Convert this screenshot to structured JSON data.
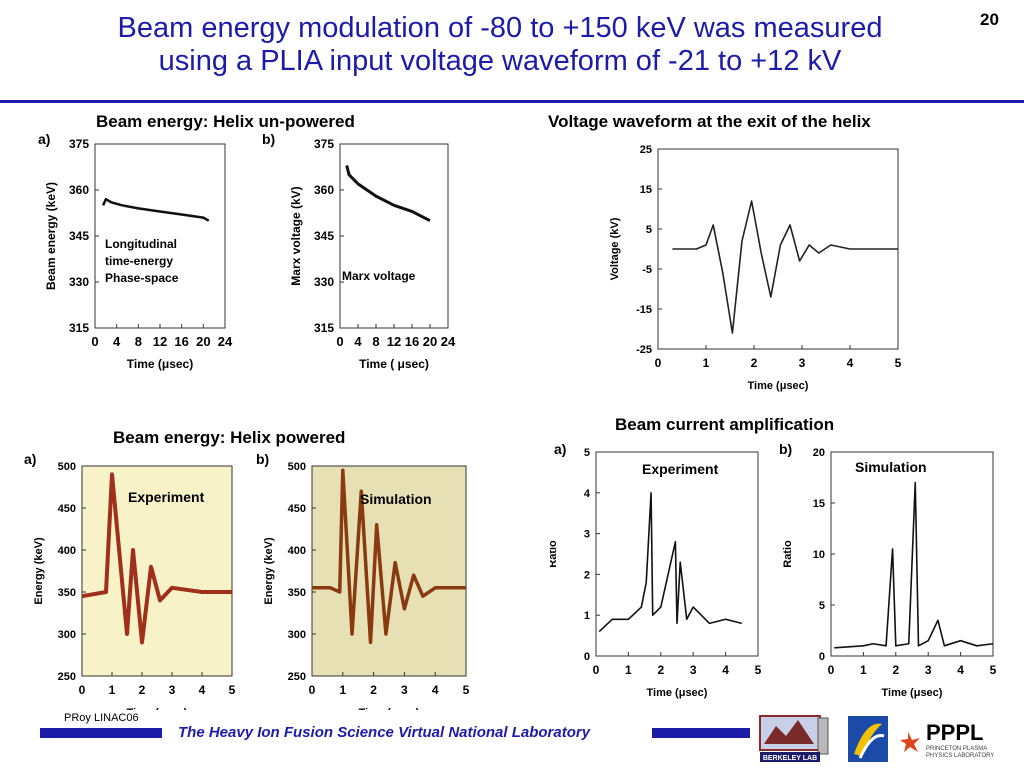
{
  "slide": {
    "number": "20",
    "title_line1": "Beam energy modulation of -80 to +150 keV was measured",
    "title_line2": "using a PLIA input voltage waveform of -21 to +12 kV"
  },
  "sections": {
    "unpowered": "Beam energy: Helix un-powered",
    "waveform": "Voltage waveform  at the exit of the helix",
    "powered": "Beam energy: Helix powered",
    "current": "Beam current amplification"
  },
  "footer": {
    "tag": "PRoy LINAC06",
    "text": "The Heavy Ion Fusion Science Virtual National Laboratory",
    "logo_berkeley": "BERKELEY LAB",
    "logo_pppl": "PPPL",
    "logo_pppl_sub1": "PRINCETON PLASMA",
    "logo_pppl_sub2": "PHYSICS LABORATORY"
  },
  "chart_data": [
    {
      "type": "line",
      "panel": "a)",
      "ylabel": "Beam energy (keV)",
      "xlabel": "Time (μsec)",
      "yticks": [
        "375",
        "360",
        "345",
        "330",
        "315"
      ],
      "xticks": [
        "0",
        "4",
        "8",
        "12",
        "16",
        "20",
        "24"
      ],
      "annotation": [
        "Longitudinal",
        "time-energy",
        "Phase-space"
      ],
      "x": [
        1.5,
        2,
        3,
        5,
        8,
        12,
        16,
        20,
        21
      ],
      "y": [
        355,
        357,
        356,
        355,
        354,
        353,
        352,
        351,
        350
      ]
    },
    {
      "type": "line",
      "panel": "b)",
      "ylabel": "Marx voltage (kV)",
      "xlabel": "Time ( μsec)",
      "yticks": [
        "375",
        "360",
        "345",
        "330",
        "315"
      ],
      "xticks": [
        "0",
        "4",
        "8",
        "12",
        "16",
        "20",
        "24"
      ],
      "annotation": "Marx voltage",
      "x": [
        1.5,
        2,
        4,
        8,
        12,
        16,
        20
      ],
      "y": [
        368,
        365,
        362,
        358,
        355,
        353,
        350
      ]
    },
    {
      "type": "line",
      "ylabel": "Voltage (kV)",
      "xlabel": "Time (μsec)",
      "yticks": [
        "25",
        "15",
        "5",
        "-5",
        "-15",
        "-25"
      ],
      "xticks": [
        "0",
        "1",
        "2",
        "3",
        "4",
        "5"
      ],
      "x": [
        0.3,
        0.8,
        1.0,
        1.15,
        1.35,
        1.55,
        1.75,
        1.95,
        2.15,
        2.35,
        2.55,
        2.75,
        2.95,
        3.15,
        3.35,
        3.6,
        4.0,
        5.0
      ],
      "y": [
        0,
        0,
        1,
        6,
        -6,
        -21,
        2,
        12,
        -1,
        -12,
        1,
        6,
        -3,
        1,
        -1,
        1,
        0,
        0
      ]
    },
    {
      "type": "line",
      "panel": "a)",
      "ylabel": "Energy (keV)",
      "xlabel": "Time (μsec)",
      "yticks": [
        "500",
        "450",
        "400",
        "350",
        "300",
        "250"
      ],
      "xticks": [
        "0",
        "1",
        "2",
        "3",
        "4",
        "5"
      ],
      "annotation": "Experiment",
      "x": [
        0,
        0.8,
        1.0,
        1.5,
        1.7,
        2.0,
        2.3,
        2.6,
        3.0,
        4.0,
        5.0
      ],
      "y": [
        345,
        350,
        490,
        300,
        400,
        290,
        380,
        340,
        355,
        350,
        350
      ]
    },
    {
      "type": "line",
      "panel": "b)",
      "ylabel": "Energy (keV)",
      "xlabel": "Time (μsec)",
      "yticks": [
        "500",
        "450",
        "400",
        "350",
        "300",
        "250"
      ],
      "xticks": [
        "0",
        "1",
        "2",
        "3",
        "4",
        "5"
      ],
      "annotation": "Simulation",
      "x": [
        0,
        0.6,
        0.9,
        1.0,
        1.3,
        1.6,
        1.9,
        2.1,
        2.4,
        2.7,
        3.0,
        3.3,
        3.6,
        4.0,
        5.0
      ],
      "y": [
        355,
        355,
        350,
        495,
        300,
        470,
        290,
        430,
        300,
        385,
        330,
        370,
        345,
        355,
        355
      ]
    },
    {
      "type": "line",
      "panel": "a)",
      "ylabel": "Ratio",
      "xlabel": "Time (μsec)",
      "yticks": [
        "5",
        "4",
        "3",
        "2",
        "1",
        "0"
      ],
      "xticks": [
        "0",
        "1",
        "2",
        "3",
        "4",
        "5"
      ],
      "annotation": "Experiment",
      "x": [
        0.1,
        0.5,
        1.0,
        1.4,
        1.55,
        1.7,
        1.75,
        2.0,
        2.45,
        2.5,
        2.6,
        2.8,
        3.0,
        3.5,
        4.0,
        4.5
      ],
      "y": [
        0.6,
        0.9,
        0.9,
        1.2,
        1.8,
        4.0,
        1.0,
        1.2,
        2.8,
        0.8,
        2.3,
        0.9,
        1.2,
        0.8,
        0.9,
        0.8
      ]
    },
    {
      "type": "line",
      "panel": "b)",
      "ylabel": "Ratio",
      "xlabel": "Time (μsec)",
      "yticks": [
        "20",
        "15",
        "10",
        "5",
        "0"
      ],
      "xticks": [
        "0",
        "1",
        "2",
        "3",
        "4",
        "5"
      ],
      "annotation": "Simulation",
      "x": [
        0.1,
        1.0,
        1.3,
        1.7,
        1.9,
        2.0,
        2.4,
        2.6,
        2.7,
        3.0,
        3.3,
        3.5,
        4.0,
        4.5,
        5.0
      ],
      "y": [
        0.8,
        1.0,
        1.2,
        1.0,
        10.5,
        1.0,
        1.2,
        17,
        1.0,
        1.5,
        3.5,
        1.0,
        1.5,
        1.0,
        1.2
      ]
    }
  ]
}
